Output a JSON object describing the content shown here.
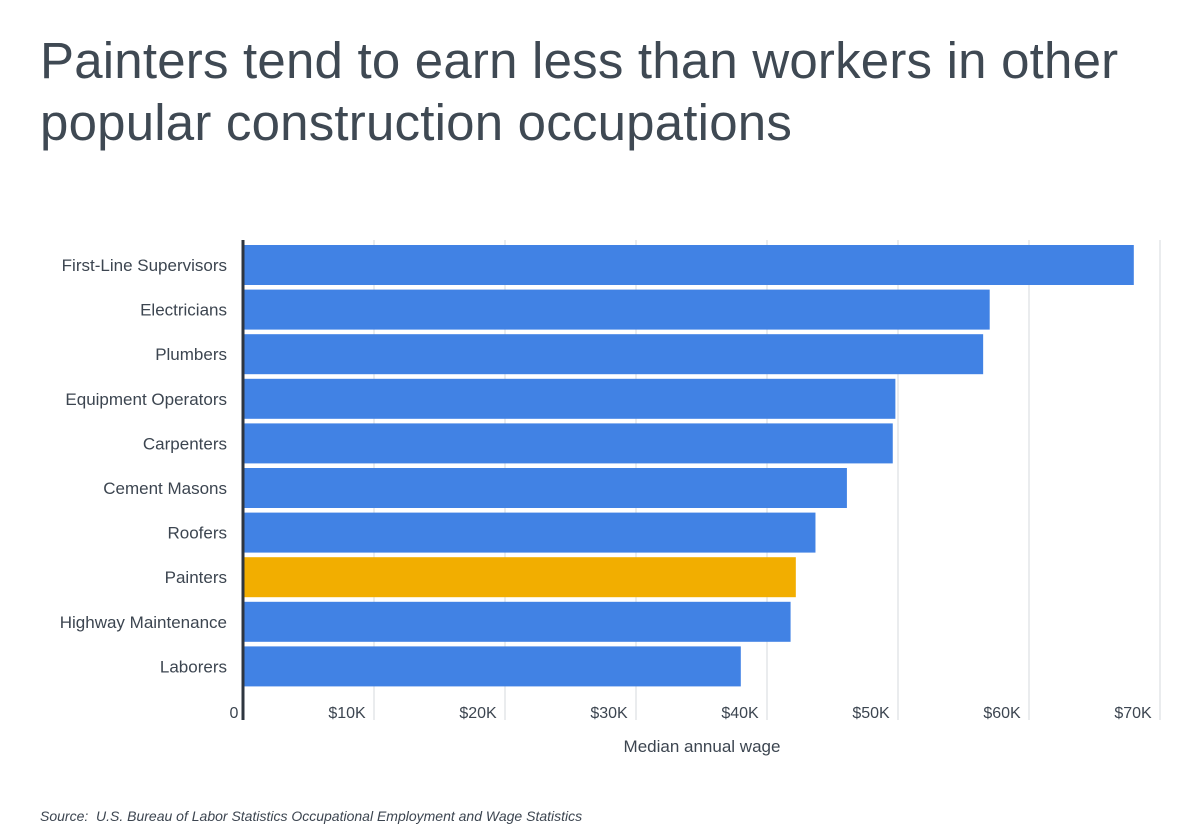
{
  "chart_data": {
    "type": "bar",
    "orientation": "horizontal",
    "title": "Painters tend to earn less than workers in other popular construction occupations",
    "xlabel": "Median annual wage",
    "ylabel": "",
    "xlim": [
      0,
      70000
    ],
    "ticks": [
      0,
      10000,
      20000,
      30000,
      40000,
      50000,
      60000,
      70000
    ],
    "tick_labels": [
      "0",
      "$10K",
      "$20K",
      "$30K",
      "$40K",
      "$50K",
      "$60K",
      "$70K"
    ],
    "grid": true,
    "categories": [
      "First-Line Supervisors",
      "Electricians",
      "Plumbers",
      "Equipment Operators",
      "Carpenters",
      "Cement Masons",
      "Roofers",
      "Painters",
      "Highway Maintenance",
      "Laborers"
    ],
    "values": [
      68000,
      57000,
      56500,
      49800,
      49600,
      46100,
      43700,
      42200,
      41800,
      38000
    ],
    "highlight": "Painters",
    "colors": {
      "bar": "#4182e4",
      "highlight": "#f2ae00",
      "grid": "#d6d9dd",
      "axis": "#2e3640"
    }
  },
  "source": {
    "label": "Source:",
    "text": "U.S. Bureau of Labor Statistics Occupational Employment and Wage Statistics"
  }
}
